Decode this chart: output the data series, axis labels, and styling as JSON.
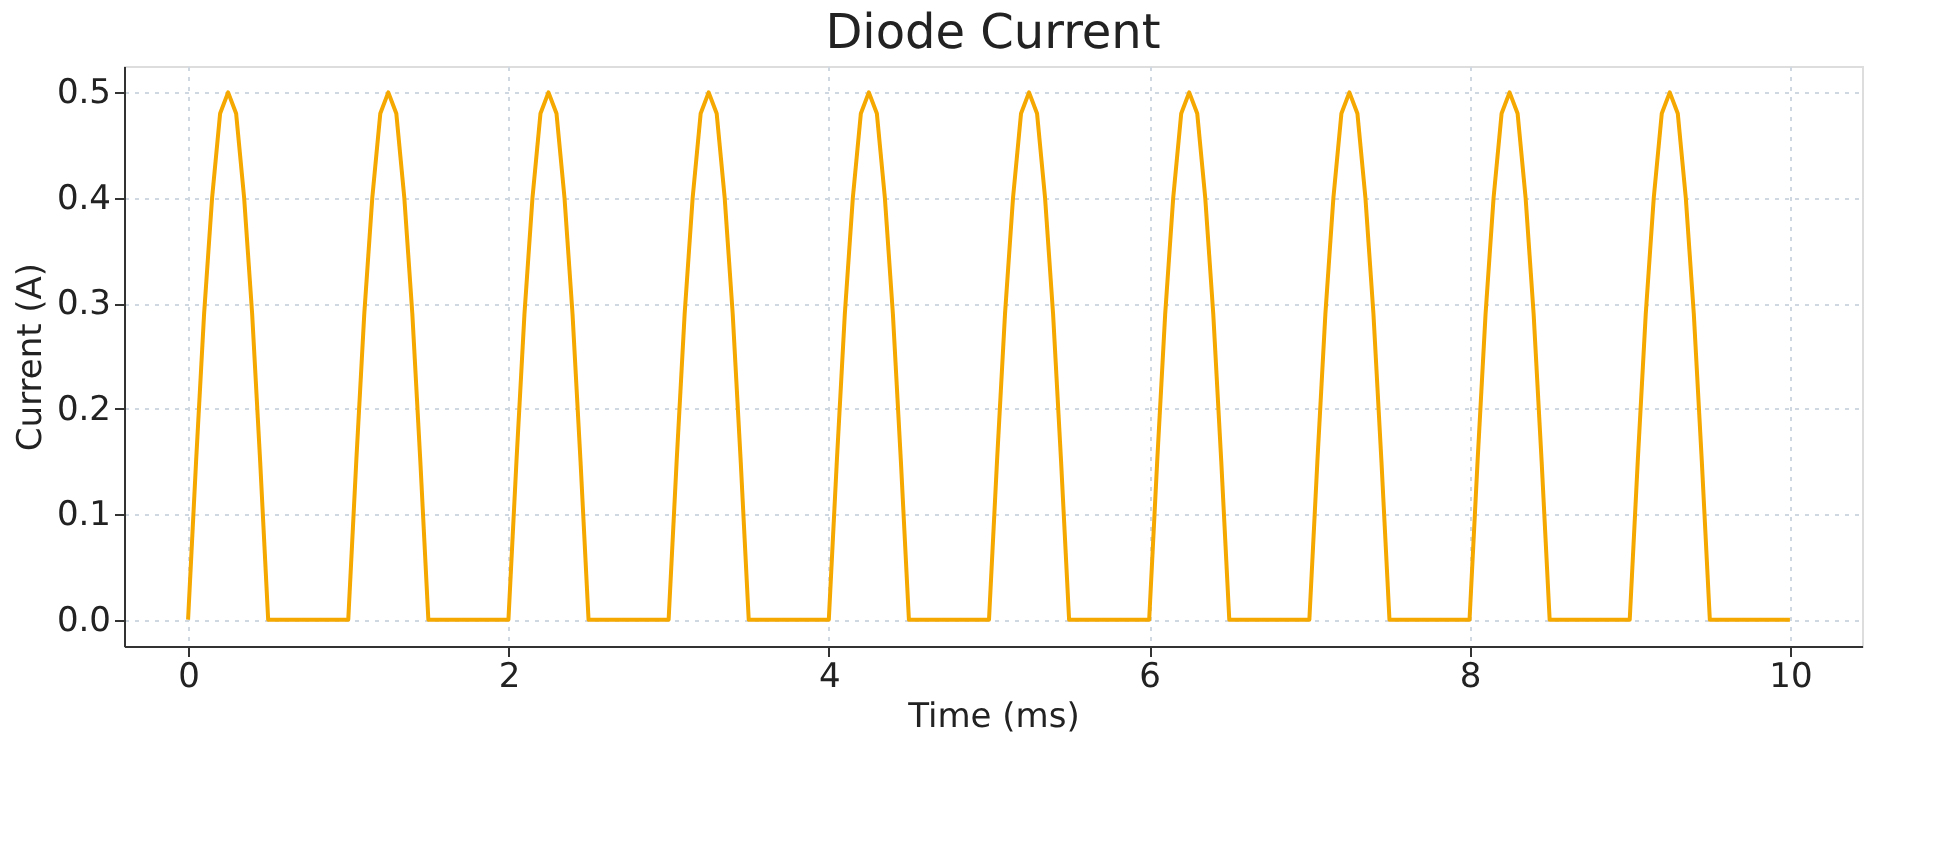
{
  "chart_data": {
    "type": "line",
    "title": "Diode Current",
    "xlabel": "Time (ms)",
    "ylabel": "Current (A)",
    "xlim": [
      -0.4,
      10.45
    ],
    "ylim": [
      -0.025,
      0.525
    ],
    "xticks": [
      0,
      2,
      4,
      6,
      8,
      10
    ],
    "yticks": [
      {
        "value": 0,
        "label": "0.0"
      },
      {
        "value": 0.1,
        "label": "0.1"
      },
      {
        "value": 0.2,
        "label": "0.2"
      },
      {
        "value": 0.3,
        "label": "0.3"
      },
      {
        "value": 0.4,
        "label": "0.4"
      },
      {
        "value": 0.5,
        "label": "0.5"
      }
    ],
    "grid": true,
    "marker": "none",
    "line_style": "solid",
    "series": [
      {
        "color": "#f5a800",
        "x": [
          0,
          0.05,
          0.1,
          0.15,
          0.2,
          0.25,
          0.3,
          0.35,
          0.4,
          0.45,
          0.5,
          1,
          1.05,
          1.1,
          1.15,
          1.2,
          1.25,
          1.3,
          1.35,
          1.4,
          1.45,
          1.5,
          2,
          2.05,
          2.1,
          2.15,
          2.2,
          2.25,
          2.3,
          2.35,
          2.4,
          2.45,
          2.5,
          3,
          3.05,
          3.1,
          3.15,
          3.2,
          3.25,
          3.3,
          3.35,
          3.4,
          3.45,
          3.5,
          4,
          4.05,
          4.1,
          4.15,
          4.2,
          4.25,
          4.3,
          4.35,
          4.4,
          4.45,
          4.5,
          5,
          5.05,
          5.1,
          5.15,
          5.2,
          5.25,
          5.3,
          5.35,
          5.4,
          5.45,
          5.5,
          6,
          6.05,
          6.1,
          6.15,
          6.2,
          6.25,
          6.3,
          6.35,
          6.4,
          6.45,
          6.5,
          7,
          7.05,
          7.1,
          7.15,
          7.2,
          7.25,
          7.3,
          7.35,
          7.4,
          7.45,
          7.5,
          8,
          8.05,
          8.1,
          8.15,
          8.2,
          8.25,
          8.3,
          8.35,
          8.4,
          8.45,
          8.5,
          9,
          9.05,
          9.1,
          9.15,
          9.2,
          9.25,
          9.3,
          9.35,
          9.4,
          9.45,
          9.5,
          10
        ],
        "values": [
          0,
          0.15,
          0.29,
          0.4,
          0.48,
          0.5,
          0.48,
          0.4,
          0.29,
          0.15,
          0,
          0,
          0.15,
          0.29,
          0.4,
          0.48,
          0.5,
          0.48,
          0.4,
          0.29,
          0.15,
          0,
          0,
          0.15,
          0.29,
          0.4,
          0.48,
          0.5,
          0.48,
          0.4,
          0.29,
          0.15,
          0,
          0,
          0.15,
          0.29,
          0.4,
          0.48,
          0.5,
          0.48,
          0.4,
          0.29,
          0.15,
          0,
          0,
          0.15,
          0.29,
          0.4,
          0.48,
          0.5,
          0.48,
          0.4,
          0.29,
          0.15,
          0,
          0,
          0.15,
          0.29,
          0.4,
          0.48,
          0.5,
          0.48,
          0.4,
          0.29,
          0.15,
          0,
          0,
          0.15,
          0.29,
          0.4,
          0.48,
          0.5,
          0.48,
          0.4,
          0.29,
          0.15,
          0,
          0,
          0.15,
          0.29,
          0.4,
          0.48,
          0.5,
          0.48,
          0.4,
          0.29,
          0.15,
          0,
          0,
          0.15,
          0.29,
          0.4,
          0.48,
          0.5,
          0.48,
          0.4,
          0.29,
          0.15,
          0,
          0,
          0.15,
          0.29,
          0.4,
          0.48,
          0.5,
          0.48,
          0.4,
          0.29,
          0.15,
          0,
          0
        ]
      }
    ]
  }
}
